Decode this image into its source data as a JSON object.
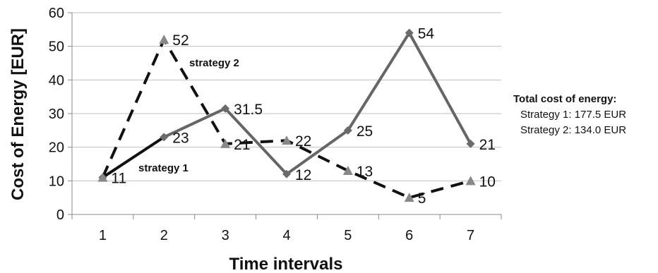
{
  "chart_data": {
    "type": "line",
    "ylabel": "Cost of Energy [EUR]",
    "xlabel": "Time intervals",
    "categories": [
      "1",
      "2",
      "3",
      "4",
      "5",
      "6",
      "7"
    ],
    "ylim": [
      0,
      60
    ],
    "yticks": [
      "0",
      "10",
      "20",
      "30",
      "40",
      "50",
      "60"
    ],
    "grid": true,
    "series": [
      {
        "name": "strategy 1",
        "values": [
          11,
          23,
          31.5,
          12,
          25,
          54,
          21
        ],
        "data_labels": [
          "11",
          "23",
          "31.5",
          "12",
          "25",
          "54",
          "21"
        ],
        "marker": "diamond",
        "line_style": "solid",
        "color": "#666666",
        "first_segment_color": "#111111"
      },
      {
        "name": "strategy 2",
        "values": [
          11,
          52,
          21,
          22,
          13,
          5,
          10
        ],
        "data_labels": [
          "",
          "52",
          "21",
          "22",
          "13",
          "5",
          "10"
        ],
        "marker": "triangle",
        "line_style": "dashed",
        "color": "#111111",
        "marker_color": "#888888"
      }
    ],
    "annotation": {
      "title": "Total cost of energy:",
      "lines": [
        "Strategy 1: 177.5 EUR",
        "Strategy 2: 134.0 EUR"
      ]
    }
  }
}
